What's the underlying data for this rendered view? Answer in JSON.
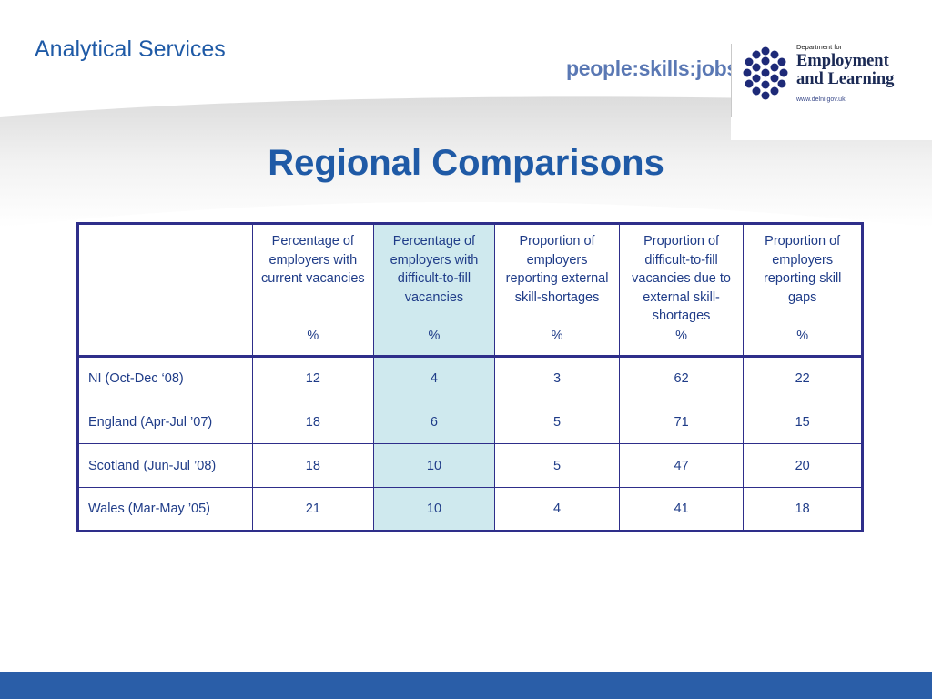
{
  "header": {
    "section_title": "Analytical Services",
    "tagline": "people:skills:jobs:",
    "logo": {
      "dept_small": "Department for",
      "name": "Employment\nand Learning",
      "url": "www.delni.gov.uk"
    }
  },
  "title": "Regional Comparisons",
  "colors": {
    "title_blue": "#1f5aa6",
    "table_border": "#2e2e8a",
    "highlight_column": "#cfe9ee",
    "footer_bar": "#2a5ea8"
  },
  "table": {
    "columns": [
      {
        "label": "",
        "unit": ""
      },
      {
        "label": "Percentage of employers with current vacancies",
        "unit": "%"
      },
      {
        "label": "Percentage of employers with difficult-to-fill vacancies",
        "unit": "%"
      },
      {
        "label": "Proportion of employers reporting external skill-shortages",
        "unit": "%"
      },
      {
        "label": "Proportion of difficult-to-fill vacancies due to external skill-shortages",
        "unit": "%"
      },
      {
        "label": "Proportion of employers reporting skill gaps",
        "unit": "%"
      }
    ],
    "rows": [
      {
        "region": "NI  (Oct-Dec ‘08)",
        "values": [
          "12",
          "4",
          "3",
          "62",
          "22"
        ]
      },
      {
        "region": "England (Apr-Jul ’07)",
        "values": [
          "18",
          "6",
          "5",
          "71",
          "15"
        ]
      },
      {
        "region": "Scotland (Jun-Jul ’08)",
        "values": [
          "18",
          "10",
          "5",
          "47",
          "20"
        ]
      },
      {
        "region": "Wales (Mar-May ’05)",
        "values": [
          "21",
          "10",
          "4",
          "41",
          "18"
        ]
      }
    ]
  }
}
